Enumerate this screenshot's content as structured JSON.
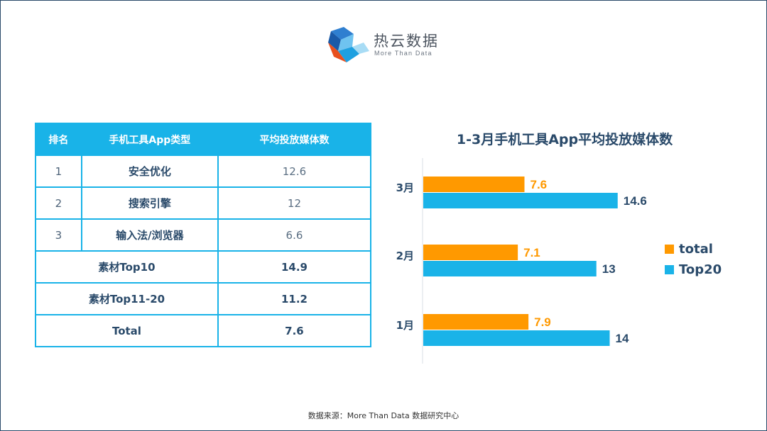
{
  "logo": {
    "name": "热云数据",
    "tagline": "More Than Data"
  },
  "table": {
    "headers": [
      "排名",
      "手机工具App类型",
      "平均投放媒体数"
    ],
    "rows": [
      {
        "rank": "1",
        "type": "安全优化",
        "value": "12.6"
      },
      {
        "rank": "2",
        "type": "搜索引擎",
        "value": "12"
      },
      {
        "rank": "3",
        "type": "输入法/浏览器",
        "value": "6.6"
      }
    ],
    "summary": [
      {
        "label": "素材Top10",
        "value": "14.9"
      },
      {
        "label": "素材Top11-20",
        "value": "11.2"
      },
      {
        "label": "Total",
        "value": "7.6"
      }
    ]
  },
  "chart_data": {
    "type": "bar",
    "orientation": "horizontal",
    "title": "1-3月手机工具App平均投放媒体数",
    "categories": [
      "3月",
      "2月",
      "1月"
    ],
    "series": [
      {
        "name": "total",
        "color": "#ff9900",
        "values": [
          7.6,
          7.1,
          7.9
        ]
      },
      {
        "name": "Top20",
        "color": "#1ab3e8",
        "values": [
          14.6,
          13,
          14
        ]
      }
    ],
    "xlim": [
      0,
      16
    ],
    "grid": false,
    "legend_position": "right"
  },
  "footer": {
    "source": "数据来源：More Than Data 数据研究中心"
  }
}
